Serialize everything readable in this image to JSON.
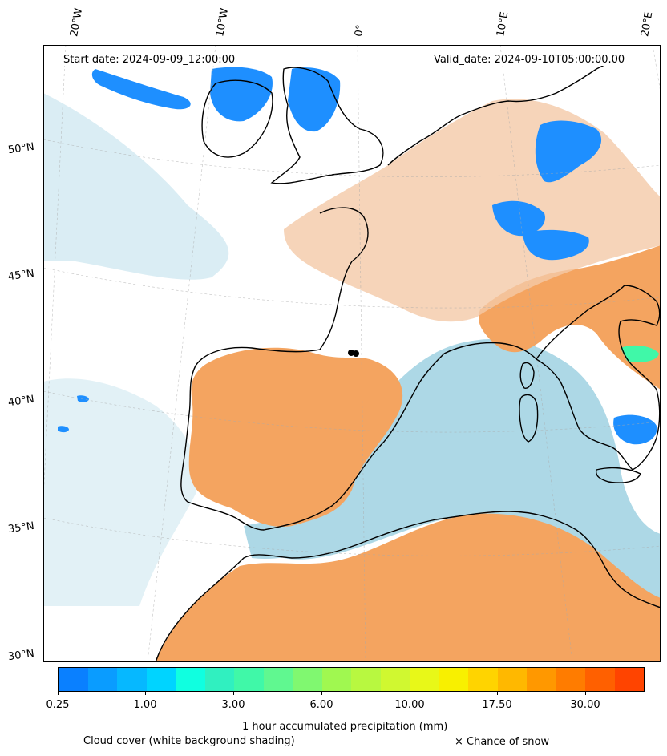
{
  "header": {
    "start_date": "Start date: 2024-09-09_12:00:00",
    "valid_date": "Valid_date: 2024-09-10T05:00:00.00"
  },
  "map": {
    "longitude_labels": [
      "20°W",
      "10°W",
      "0°",
      "10°E",
      "20°E"
    ],
    "latitude_labels": [
      "50°N",
      "45°N",
      "40°N",
      "35°N",
      "30°N"
    ],
    "colors": {
      "sea_cloud": "#add8e6",
      "land_precip_light": "#f4c9a8",
      "land_dry": "#f4a460",
      "precip_blue": "#1e8fff"
    }
  },
  "colorbar": {
    "label": "1 hour accumulated precipitation (mm)",
    "ticks": [
      "0.25",
      "1.00",
      "3.00",
      "6.00",
      "10.00",
      "17.50",
      "30.00"
    ],
    "colors": [
      "#0a80ff",
      "#0a9cff",
      "#06b8ff",
      "#00d4ff",
      "#10ffe0",
      "#30f0c0",
      "#40f8a8",
      "#60f890",
      "#80f870",
      "#a0f850",
      "#b8f840",
      "#d0f830",
      "#e8f818",
      "#f8f000",
      "#ffd400",
      "#ffb800",
      "#ff9800",
      "#ff7c00",
      "#ff6000",
      "#ff4400"
    ]
  },
  "footer": {
    "cloud_note": "Cloud cover (white background shading)",
    "snow_note": "× Chance of snow"
  }
}
